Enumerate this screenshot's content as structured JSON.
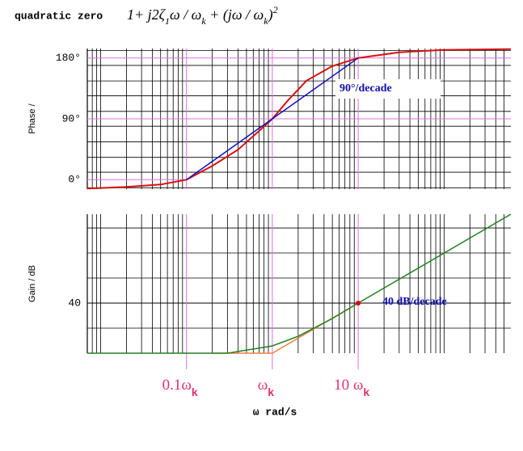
{
  "chart_data": [
    {
      "type": "line",
      "title": "quadratic zero",
      "formula": [
        {
          "text": "1+ j2ζ"
        },
        {
          "text": "1",
          "pos": "sub"
        },
        {
          "text": "ω / ω"
        },
        {
          "text": "k",
          "pos": "sub"
        },
        {
          "text": " + (jω / ω"
        },
        {
          "text": "k",
          "pos": "sub"
        },
        {
          "text": ")"
        },
        {
          "text": "2",
          "pos": "sup"
        }
      ],
      "y_label": "Phase /",
      "xscale": "log",
      "xlim": [
        0.007,
        600
      ],
      "ylim": [
        -14,
        194
      ],
      "yticks": [
        {
          "value": 0,
          "label": "0°"
        },
        {
          "value": 90,
          "label": "90°"
        },
        {
          "value": 180,
          "label": "180°"
        }
      ],
      "xticks": [
        0.1,
        1,
        10
      ],
      "xgrid": [
        0.008,
        0.009,
        0.01,
        0.02,
        0.03,
        0.04,
        0.05,
        0.06,
        0.07,
        0.08,
        0.09,
        0.2,
        0.3,
        0.4,
        0.5,
        0.6,
        0.7,
        0.8,
        0.9,
        2,
        3,
        4,
        5,
        6,
        7,
        8,
        9,
        20,
        30,
        40,
        50,
        60,
        70,
        80,
        90,
        100,
        200,
        300,
        400,
        500
      ],
      "ygrid": [
        -12,
        11,
        33,
        56,
        79,
        101,
        124,
        146,
        169,
        191
      ],
      "tick_color": "#e070e0",
      "grid_color": "#000000",
      "series": [
        {
          "color": "#d81010",
          "x": [
            0.007,
            0.02,
            0.05,
            0.1,
            0.2,
            0.4,
            0.7,
            1,
            1.5,
            2.5,
            5,
            10,
            30,
            100,
            600
          ],
          "values": [
            -13.2,
            -10.8,
            -7.2,
            0,
            20.4,
            44.4,
            72,
            90,
            116.4,
            146.4,
            168,
            180,
            188.4,
            192,
            193.2
          ]
        },
        {
          "color": "#1010c0",
          "x": [
            0.1,
            10
          ],
          "values": [
            0,
            180
          ]
        }
      ],
      "annotation": "90°/decade"
    },
    {
      "type": "line",
      "y_label": "Gain / dB",
      "x_label": "ω rad/s",
      "xscale": "log",
      "xlim": [
        0.007,
        600
      ],
      "ylim": [
        0,
        111
      ],
      "yticks": [
        40
      ],
      "xticks": [
        {
          "value": 0.1,
          "label": "0.1ω",
          "sub": "k"
        },
        {
          "value": 1,
          "label": "ω",
          "sub": "k"
        },
        {
          "value": 10,
          "label": "10 ω",
          "sub": "k"
        }
      ],
      "xgrid": [
        0.008,
        0.009,
        0.01,
        0.02,
        0.03,
        0.04,
        0.05,
        0.06,
        0.07,
        0.08,
        0.09,
        0.2,
        0.3,
        0.4,
        0.5,
        0.6,
        0.7,
        0.8,
        0.9,
        2,
        3,
        4,
        5,
        6,
        7,
        8,
        9,
        20,
        30,
        40,
        50,
        60,
        70,
        80,
        90,
        100,
        200,
        300,
        400,
        500
      ],
      "ygrid": [
        20,
        60,
        80,
        100
      ],
      "tick_color": "#e070e0",
      "grid_color": "#000000",
      "series": [
        {
          "color": "#f08040",
          "x": [
            0.2,
            1,
            10
          ],
          "values": [
            0,
            0,
            40
          ]
        },
        {
          "color": "#208020",
          "x": [
            0.007,
            0.3,
            1,
            2,
            5,
            10,
            20,
            600
          ],
          "values": [
            0,
            0,
            5.8,
            13.5,
            27.7,
            40,
            52,
            111
          ]
        }
      ],
      "points": [
        {
          "x": 10,
          "value": 40,
          "color": "#e00000"
        }
      ],
      "annotation": "40 dB/decade"
    }
  ]
}
